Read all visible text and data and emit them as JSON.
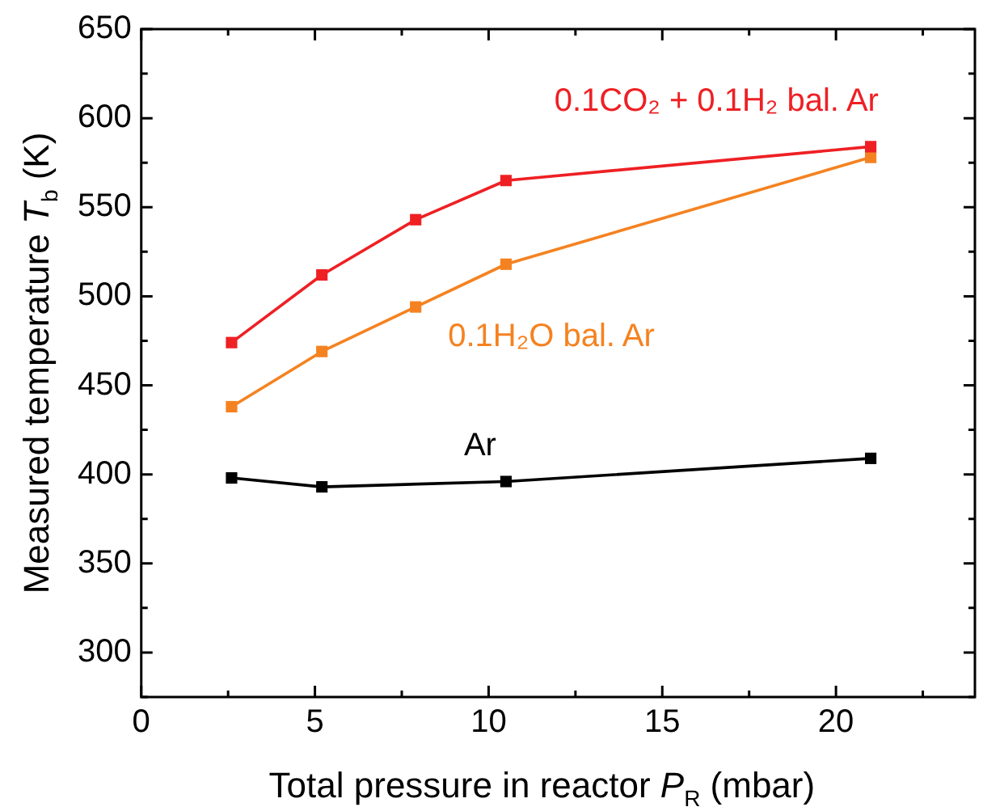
{
  "chart_data": {
    "type": "line",
    "xlabel": "Total pressure in reactor P$_{R}$ (mbar)",
    "ylabel": "Measured temperature T$_{b}$ (K)",
    "x": [
      2.6,
      5.2,
      7.9,
      10.5,
      21
    ],
    "series": [
      {
        "name": "0.1CO₂ + 0.1H₂ bal. Ar",
        "color": "#ee2024",
        "values": [
          474,
          512,
          543,
          565,
          584
        ]
      },
      {
        "name": "0.1H₂O bal. Ar",
        "color": "#f58220",
        "values": [
          438,
          469,
          494,
          518,
          578
        ]
      },
      {
        "name": "Ar",
        "color": "#000000",
        "x": [
          2.6,
          5.2,
          10.5,
          21
        ],
        "values": [
          398,
          393,
          396,
          409
        ]
      }
    ],
    "xlim": [
      0,
      24
    ],
    "xticks": [
      0,
      5,
      10,
      15,
      20
    ],
    "ylim": [
      275,
      650
    ],
    "yticks": [
      300,
      350,
      400,
      450,
      500,
      550,
      600,
      650
    ],
    "grid": false,
    "legend": false,
    "marker": "square",
    "line_style": "solid"
  }
}
